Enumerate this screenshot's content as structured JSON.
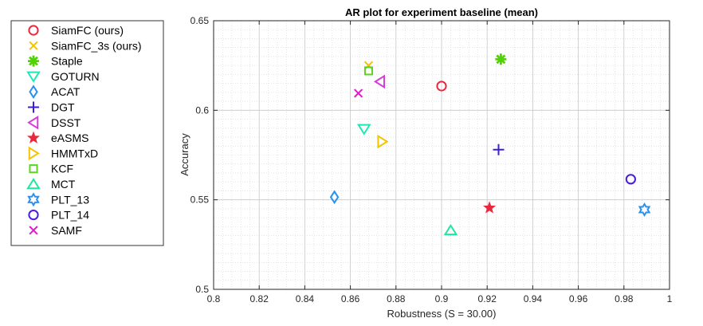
{
  "chart_data": {
    "type": "scatter",
    "title": "AR plot for experiment baseline (mean)",
    "xlabel": "Robustness (S = 30.00)",
    "ylabel": "Accuracy",
    "xlim": [
      0.8,
      1.0
    ],
    "ylim": [
      0.5,
      0.65
    ],
    "xticks": [
      0.8,
      0.82,
      0.84,
      0.86,
      0.88,
      0.9,
      0.92,
      0.94,
      0.96,
      0.98,
      1
    ],
    "xtick_labels": [
      "0.8",
      "0.82",
      "0.84",
      "0.86",
      "0.88",
      "0.9",
      "0.92",
      "0.94",
      "0.96",
      "0.98",
      "1"
    ],
    "yticks": [
      0.5,
      0.55,
      0.6,
      0.65
    ],
    "ytick_labels": [
      "0.5",
      "0.55",
      "0.6",
      "0.65"
    ],
    "grid": true,
    "legend_position": "left-outside",
    "series": [
      {
        "name": "SiamFC (ours)",
        "marker": "circle",
        "color": "#e8283c",
        "x": 0.9,
        "y": 0.6135
      },
      {
        "name": "SiamFC_3s (ours)",
        "marker": "x",
        "color": "#f3c400",
        "x": 0.868,
        "y": 0.625
      },
      {
        "name": "Staple",
        "marker": "asterisk",
        "color": "#4fd400",
        "x": 0.926,
        "y": 0.6285
      },
      {
        "name": "GOTURN",
        "marker": "triangle-down",
        "color": "#1ee8b4",
        "x": 0.866,
        "y": 0.5895
      },
      {
        "name": "ACAT",
        "marker": "diamond",
        "color": "#2a8ff0",
        "x": 0.853,
        "y": 0.5515
      },
      {
        "name": "DGT",
        "marker": "plus",
        "color": "#3b1fd8",
        "x": 0.925,
        "y": 0.578
      },
      {
        "name": "DSST",
        "marker": "triangle-left",
        "color": "#d83cd8",
        "x": 0.873,
        "y": 0.616
      },
      {
        "name": "eASMS",
        "marker": "star",
        "color": "#e8283c",
        "x": 0.921,
        "y": 0.5455
      },
      {
        "name": "HMMTxD",
        "marker": "triangle-right",
        "color": "#f3c400",
        "x": 0.874,
        "y": 0.5825
      },
      {
        "name": "KCF",
        "marker": "square",
        "color": "#5ad41e",
        "x": 0.868,
        "y": 0.622
      },
      {
        "name": "MCT",
        "marker": "triangle-up",
        "color": "#1ee8a0",
        "x": 0.904,
        "y": 0.533
      },
      {
        "name": "PLT_13",
        "marker": "hexagram",
        "color": "#2a8ff0",
        "x": 0.989,
        "y": 0.5445
      },
      {
        "name": "PLT_14",
        "marker": "circle",
        "color": "#4a1ce0",
        "x": 0.983,
        "y": 0.5615
      },
      {
        "name": "SAMF",
        "marker": "x",
        "color": "#e01ec8",
        "x": 0.8635,
        "y": 0.6095
      }
    ]
  }
}
